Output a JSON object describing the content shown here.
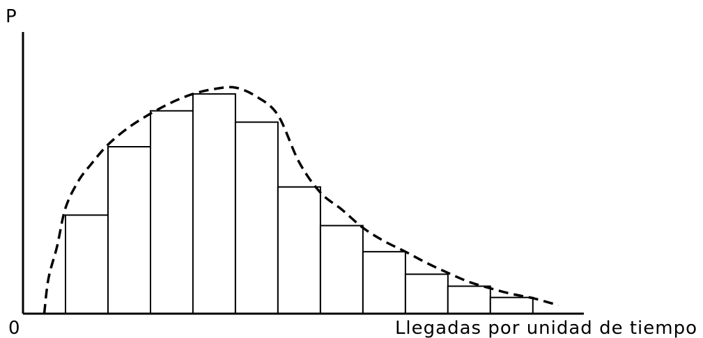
{
  "chart_data": {
    "type": "bar",
    "title": "",
    "xlabel": "Llegadas por unidad de tiempo",
    "ylabel": "P",
    "origin_label": "0",
    "bar_color": "#ffffff",
    "bar_stroke": "#000000",
    "curve_color": "#000000",
    "grid": false,
    "legend": "none",
    "xlim": [
      0,
      13.2
    ],
    "ylim": [
      0,
      400
    ],
    "bins": [
      {
        "x0": 1,
        "x1": 2,
        "value": 140
      },
      {
        "x0": 2,
        "x1": 3,
        "value": 237
      },
      {
        "x0": 3,
        "x1": 4,
        "value": 288
      },
      {
        "x0": 4,
        "x1": 5,
        "value": 312
      },
      {
        "x0": 5,
        "x1": 6,
        "value": 272
      },
      {
        "x0": 6,
        "x1": 7,
        "value": 180
      },
      {
        "x0": 7,
        "x1": 8,
        "value": 125
      },
      {
        "x0": 8,
        "x1": 9,
        "value": 88
      },
      {
        "x0": 9,
        "x1": 10,
        "value": 56
      },
      {
        "x0": 10,
        "x1": 11,
        "value": 39
      },
      {
        "x0": 11,
        "x1": 12,
        "value": 23
      }
    ],
    "curve": {
      "style": "dashed",
      "points": [
        [
          0.5,
          0
        ],
        [
          0.6,
          50
        ],
        [
          0.8,
          95
        ],
        [
          1.0,
          150
        ],
        [
          1.3,
          188
        ],
        [
          1.6,
          212
        ],
        [
          2.0,
          240
        ],
        [
          2.5,
          265
        ],
        [
          3.0,
          284
        ],
        [
          3.5,
          300
        ],
        [
          4.0,
          312
        ],
        [
          4.5,
          319
        ],
        [
          5.0,
          321
        ],
        [
          5.5,
          308
        ],
        [
          6.0,
          282
        ],
        [
          6.5,
          215
        ],
        [
          7.0,
          172
        ],
        [
          7.5,
          148
        ],
        [
          8.0,
          122
        ],
        [
          8.5,
          103
        ],
        [
          9.0,
          88
        ],
        [
          9.5,
          72
        ],
        [
          10.0,
          58
        ],
        [
          10.5,
          45
        ],
        [
          11.0,
          36
        ],
        [
          11.5,
          28
        ],
        [
          12.0,
          22
        ],
        [
          12.6,
          12
        ]
      ]
    }
  }
}
